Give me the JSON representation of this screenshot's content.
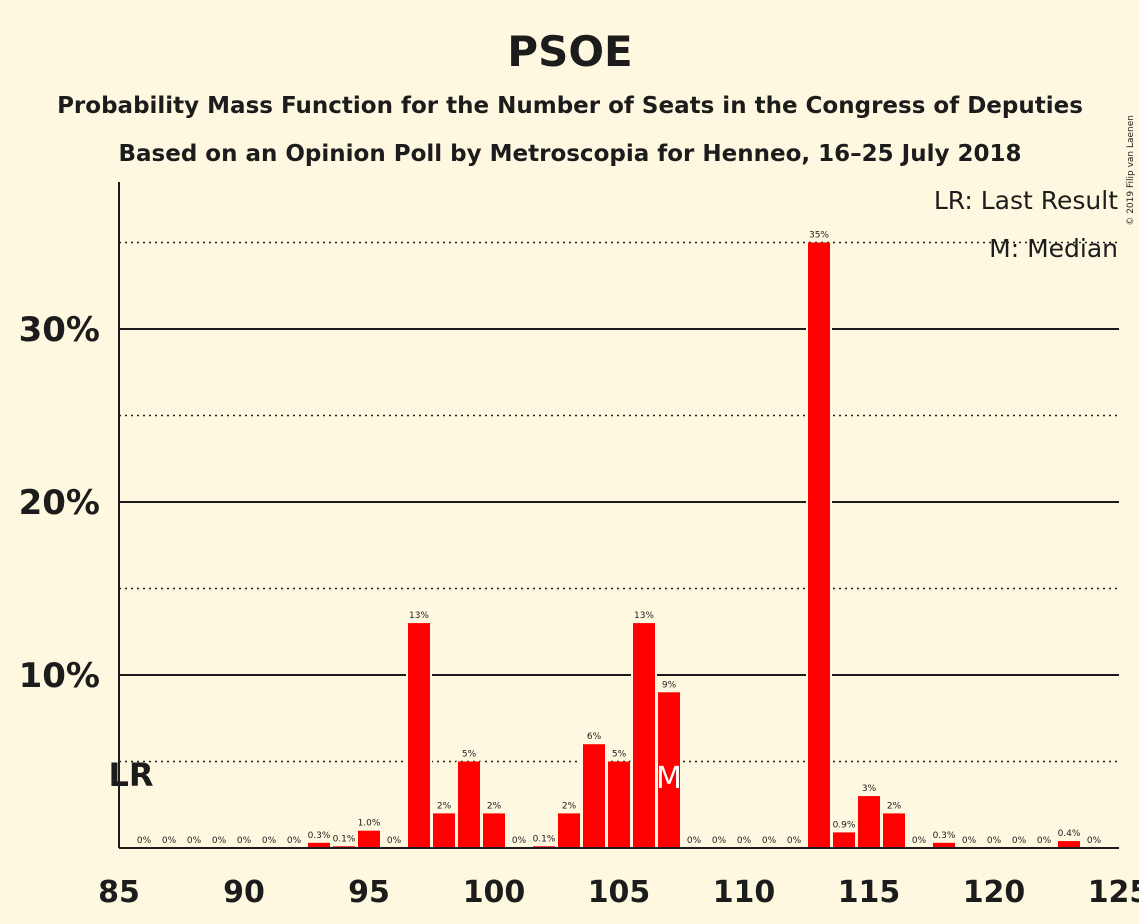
{
  "copyright": "© 2019 Filip van Laenen",
  "chart_data": {
    "type": "bar",
    "title": "PSOE",
    "subtitle1": "Probability Mass Function for the Number of Seats in the Congress of Deputies",
    "subtitle2": "Based on an Opinion Poll by Metroscopia for Henneo, 16–25 July 2018",
    "legend": {
      "lr": "LR: Last Result",
      "m": "M: Median",
      "placement": "top-right"
    },
    "lr_label": "LR",
    "lr_seat": 85,
    "median_label": "M",
    "median_seat": 107,
    "bar_color": "#ff0000",
    "xlim": [
      85,
      125
    ],
    "ylim": [
      0,
      38
    ],
    "x_ticks": [
      "85",
      "90",
      "95",
      "100",
      "105",
      "110",
      "115",
      "120",
      "125"
    ],
    "y_ticks": [
      {
        "value": 10,
        "label": "10%"
      },
      {
        "value": 20,
        "label": "20%"
      },
      {
        "value": 30,
        "label": "30%"
      }
    ],
    "dotted_gridlines": [
      5,
      15,
      25,
      35
    ],
    "seats": [
      86,
      87,
      88,
      89,
      90,
      91,
      92,
      93,
      94,
      95,
      96,
      97,
      98,
      99,
      100,
      101,
      102,
      103,
      104,
      105,
      106,
      107,
      108,
      109,
      110,
      111,
      112,
      113,
      114,
      115,
      116,
      117,
      118,
      119,
      120,
      121,
      122,
      123,
      124
    ],
    "values": [
      0,
      0,
      0,
      0,
      0,
      0,
      0,
      0.3,
      0.1,
      1.0,
      0,
      13,
      2,
      5,
      2,
      0,
      0.1,
      2,
      6,
      5,
      13,
      9,
      0,
      0,
      0,
      0,
      0,
      35,
      0.9,
      3,
      2,
      0,
      0.3,
      0,
      0,
      0,
      0,
      0.4,
      0
    ],
    "value_labels": [
      "0%",
      "0%",
      "0%",
      "0%",
      "0%",
      "0%",
      "0%",
      "0.3%",
      "0.1%",
      "1.0%",
      "0%",
      "13%",
      "2%",
      "5%",
      "2%",
      "0%",
      "0.1%",
      "2%",
      "6%",
      "5%",
      "13%",
      "9%",
      "0%",
      "0%",
      "0%",
      "0%",
      "0%",
      "35%",
      "0.9%",
      "3%",
      "2%",
      "0%",
      "0.3%",
      "0%",
      "0%",
      "0%",
      "0%",
      "0.4%",
      "0%"
    ]
  }
}
